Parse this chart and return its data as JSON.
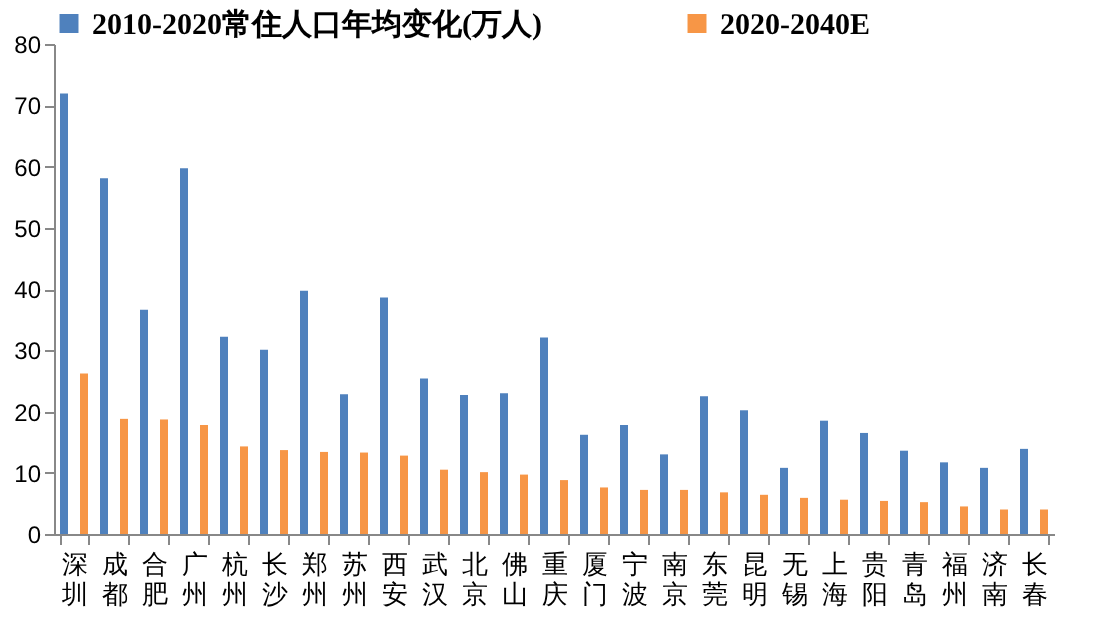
{
  "chart_data": {
    "type": "bar",
    "categories": [
      "深圳",
      "成都",
      "合肥",
      "广州",
      "杭州",
      "长沙",
      "郑州",
      "苏州",
      "西安",
      "武汉",
      "北京",
      "佛山",
      "重庆",
      "厦门",
      "宁波",
      "南京",
      "东莞",
      "昆明",
      "无锡",
      "上海",
      "贵阳",
      "青岛",
      "福州",
      "济南",
      "长春"
    ],
    "series": [
      {
        "name": "2010-2020常住人口年均变化(万人)",
        "color": "#4f81bd",
        "values": [
          71.9,
          58.1,
          36.6,
          59.7,
          32.2,
          30.1,
          39.7,
          22.8,
          38.6,
          25.4,
          22.7,
          23.0,
          32.1,
          16.2,
          17.8,
          13.0,
          22.5,
          20.2,
          10.8,
          18.5,
          16.5,
          13.6,
          11.7,
          10.8,
          13.9
        ]
      },
      {
        "name": "2020-2040E",
        "color": "#f79646",
        "values": [
          26.2,
          18.8,
          18.7,
          17.8,
          14.3,
          13.7,
          13.4,
          13.3,
          12.8,
          10.5,
          10.1,
          9.7,
          8.8,
          7.6,
          7.2,
          7.2,
          6.8,
          6.4,
          5.9,
          5.6,
          5.4,
          5.2,
          4.5,
          4.0,
          4.0
        ]
      }
    ],
    "ylim": [
      0,
      80
    ],
    "yticks": [
      0,
      10,
      20,
      30,
      40,
      50,
      60,
      70,
      80
    ],
    "grid": false,
    "legend": "top"
  }
}
